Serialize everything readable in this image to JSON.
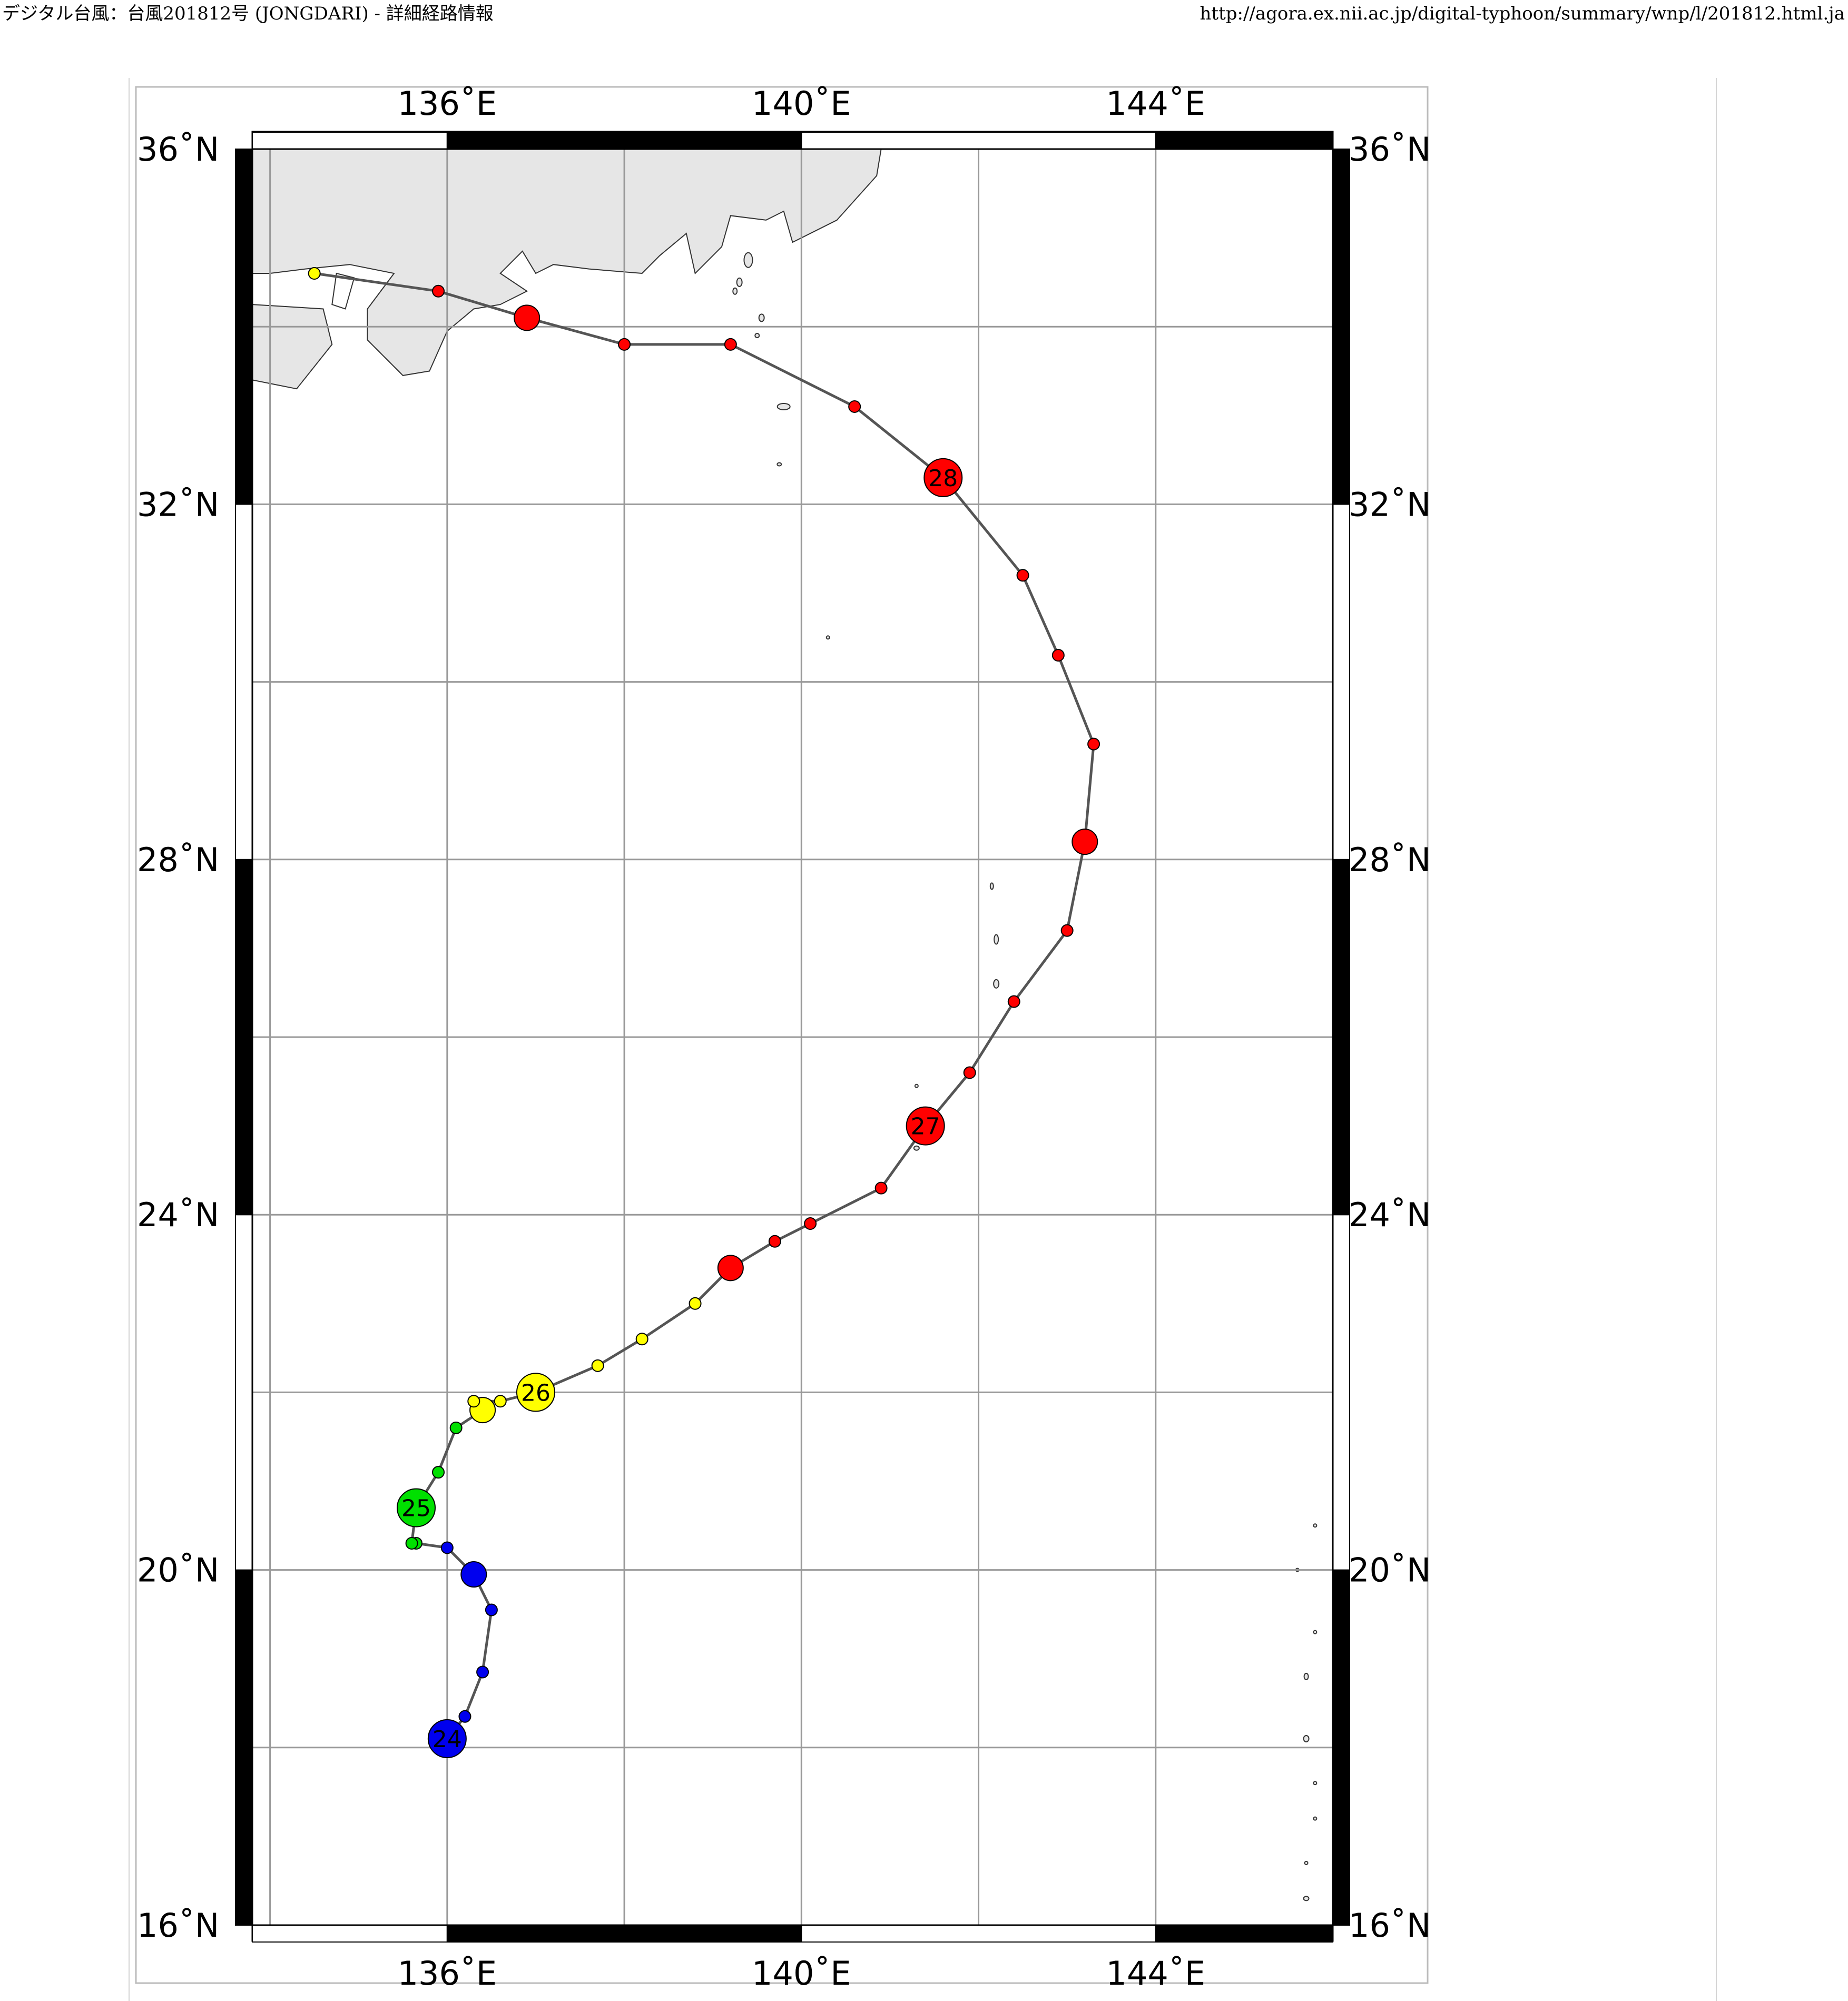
{
  "header": {
    "page_title": "デジタル台風：台風201812号 (JONGDARI) - 詳細経路情報",
    "url": "http://agora.ex.nii.ac.jp/digital-typhoon/summary/wnp/l/201812.html.ja"
  },
  "map": {
    "lon_range_deg_e": [
      133.8,
      146.0
    ],
    "lat_range_deg_n": [
      16,
      36
    ],
    "lon_ticks": [
      136,
      140,
      144
    ],
    "lat_ticks": [
      16,
      20,
      24,
      28,
      32,
      36
    ],
    "lon_tick_labels": [
      "136˚E",
      "140˚E",
      "144˚E"
    ],
    "lat_tick_labels": [
      "16˚N",
      "20˚N",
      "24˚N",
      "28˚N",
      "32˚N",
      "36˚N"
    ],
    "grid_step_deg": 2,
    "land_color": "#e6e6e6",
    "track_color": "#555555",
    "colors": {
      "blue": "#0000ee",
      "green": "#00e000",
      "yellow": "#ffff00",
      "red": "#ff0000"
    }
  },
  "track": [
    {
      "lon": 136.0,
      "lat": 18.1,
      "size": "large",
      "color": "blue",
      "label": "24"
    },
    {
      "lon": 136.2,
      "lat": 18.35,
      "size": "small",
      "color": "blue"
    },
    {
      "lon": 136.4,
      "lat": 18.85,
      "size": "small",
      "color": "blue"
    },
    {
      "lon": 136.5,
      "lat": 19.55,
      "size": "small",
      "color": "blue"
    },
    {
      "lon": 136.3,
      "lat": 19.95,
      "size": "medium",
      "color": "blue"
    },
    {
      "lon": 136.0,
      "lat": 20.25,
      "size": "small",
      "color": "blue"
    },
    {
      "lon": 135.65,
      "lat": 20.3,
      "size": "small",
      "color": "green"
    },
    {
      "lon": 135.6,
      "lat": 20.3,
      "size": "small",
      "color": "green"
    },
    {
      "lon": 135.65,
      "lat": 20.7,
      "size": "large",
      "color": "green",
      "label": "25"
    },
    {
      "lon": 135.9,
      "lat": 21.1,
      "size": "small",
      "color": "green"
    },
    {
      "lon": 136.1,
      "lat": 21.6,
      "size": "small",
      "color": "green"
    },
    {
      "lon": 136.4,
      "lat": 21.8,
      "size": "medium",
      "color": "yellow"
    },
    {
      "lon": 136.3,
      "lat": 21.9,
      "size": "small",
      "color": "yellow"
    },
    {
      "lon": 136.6,
      "lat": 21.9,
      "size": "small",
      "color": "yellow"
    },
    {
      "lon": 137.0,
      "lat": 22.0,
      "size": "large",
      "color": "yellow",
      "label": "26"
    },
    {
      "lon": 137.7,
      "lat": 22.3,
      "size": "small",
      "color": "yellow"
    },
    {
      "lon": 138.2,
      "lat": 22.6,
      "size": "small",
      "color": "yellow"
    },
    {
      "lon": 138.8,
      "lat": 23.0,
      "size": "small",
      "color": "yellow"
    },
    {
      "lon": 139.2,
      "lat": 23.4,
      "size": "medium",
      "color": "red"
    },
    {
      "lon": 139.7,
      "lat": 23.7,
      "size": "small",
      "color": "red"
    },
    {
      "lon": 140.1,
      "lat": 23.9,
      "size": "small",
      "color": "red"
    },
    {
      "lon": 140.9,
      "lat": 24.3,
      "size": "small",
      "color": "red"
    },
    {
      "lon": 141.4,
      "lat": 25.0,
      "size": "large",
      "color": "red",
      "label": "27"
    },
    {
      "lon": 141.9,
      "lat": 25.6,
      "size": "small",
      "color": "red"
    },
    {
      "lon": 142.4,
      "lat": 26.4,
      "size": "small",
      "color": "red"
    },
    {
      "lon": 143.0,
      "lat": 27.2,
      "size": "small",
      "color": "red"
    },
    {
      "lon": 143.2,
      "lat": 28.2,
      "size": "medium",
      "color": "red"
    },
    {
      "lon": 143.3,
      "lat": 29.3,
      "size": "small",
      "color": "red"
    },
    {
      "lon": 142.9,
      "lat": 30.3,
      "size": "small",
      "color": "red"
    },
    {
      "lon": 142.5,
      "lat": 31.2,
      "size": "small",
      "color": "red"
    },
    {
      "lon": 141.6,
      "lat": 32.3,
      "size": "large",
      "color": "red",
      "label": "28"
    },
    {
      "lon": 140.6,
      "lat": 33.1,
      "size": "small",
      "color": "red"
    },
    {
      "lon": 139.2,
      "lat": 33.8,
      "size": "small",
      "color": "red"
    },
    {
      "lon": 138.0,
      "lat": 33.8,
      "size": "small",
      "color": "red"
    },
    {
      "lon": 136.9,
      "lat": 34.1,
      "size": "medium",
      "color": "red"
    },
    {
      "lon": 135.9,
      "lat": 34.4,
      "size": "small",
      "color": "red"
    },
    {
      "lon": 134.5,
      "lat": 34.6,
      "size": "small",
      "color": "yellow"
    }
  ]
}
